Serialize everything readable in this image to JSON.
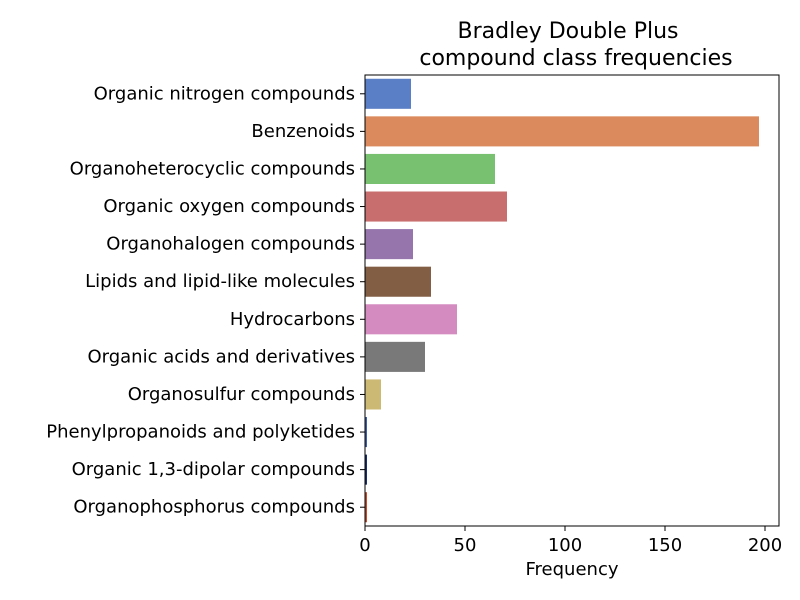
{
  "chart_data": {
    "type": "bar",
    "orientation": "horizontal",
    "title": [
      "Bradley Double Plus",
      "compound class frequencies"
    ],
    "xlabel": "Frequency",
    "ylabel": "",
    "xlim": [
      0,
      207
    ],
    "xticks": [
      0,
      50,
      100,
      150,
      200
    ],
    "grid": false,
    "legend": "none",
    "categories": [
      "Organic nitrogen compounds",
      "Benzenoids",
      "Organoheterocyclic compounds",
      "Organic oxygen compounds",
      "Organohalogen compounds",
      "Lipids and lipid-like molecules",
      "Hydrocarbons",
      "Organic acids and derivatives",
      "Organosulfur compounds",
      "Phenylpropanoids and polyketides",
      "Organic 1,3-dipolar compounds",
      "Organophosphorus compounds"
    ],
    "values": [
      23,
      197,
      65,
      71,
      24,
      33,
      46,
      30,
      8,
      1,
      1,
      1
    ],
    "colors": [
      "#5b7fc6",
      "#db8a5d",
      "#78c170",
      "#c96e6e",
      "#9575ac",
      "#825f44",
      "#d48bbf",
      "#797979",
      "#ccb974",
      "#3e5fab",
      "#1a2f6e",
      "#c94b2a"
    ]
  }
}
